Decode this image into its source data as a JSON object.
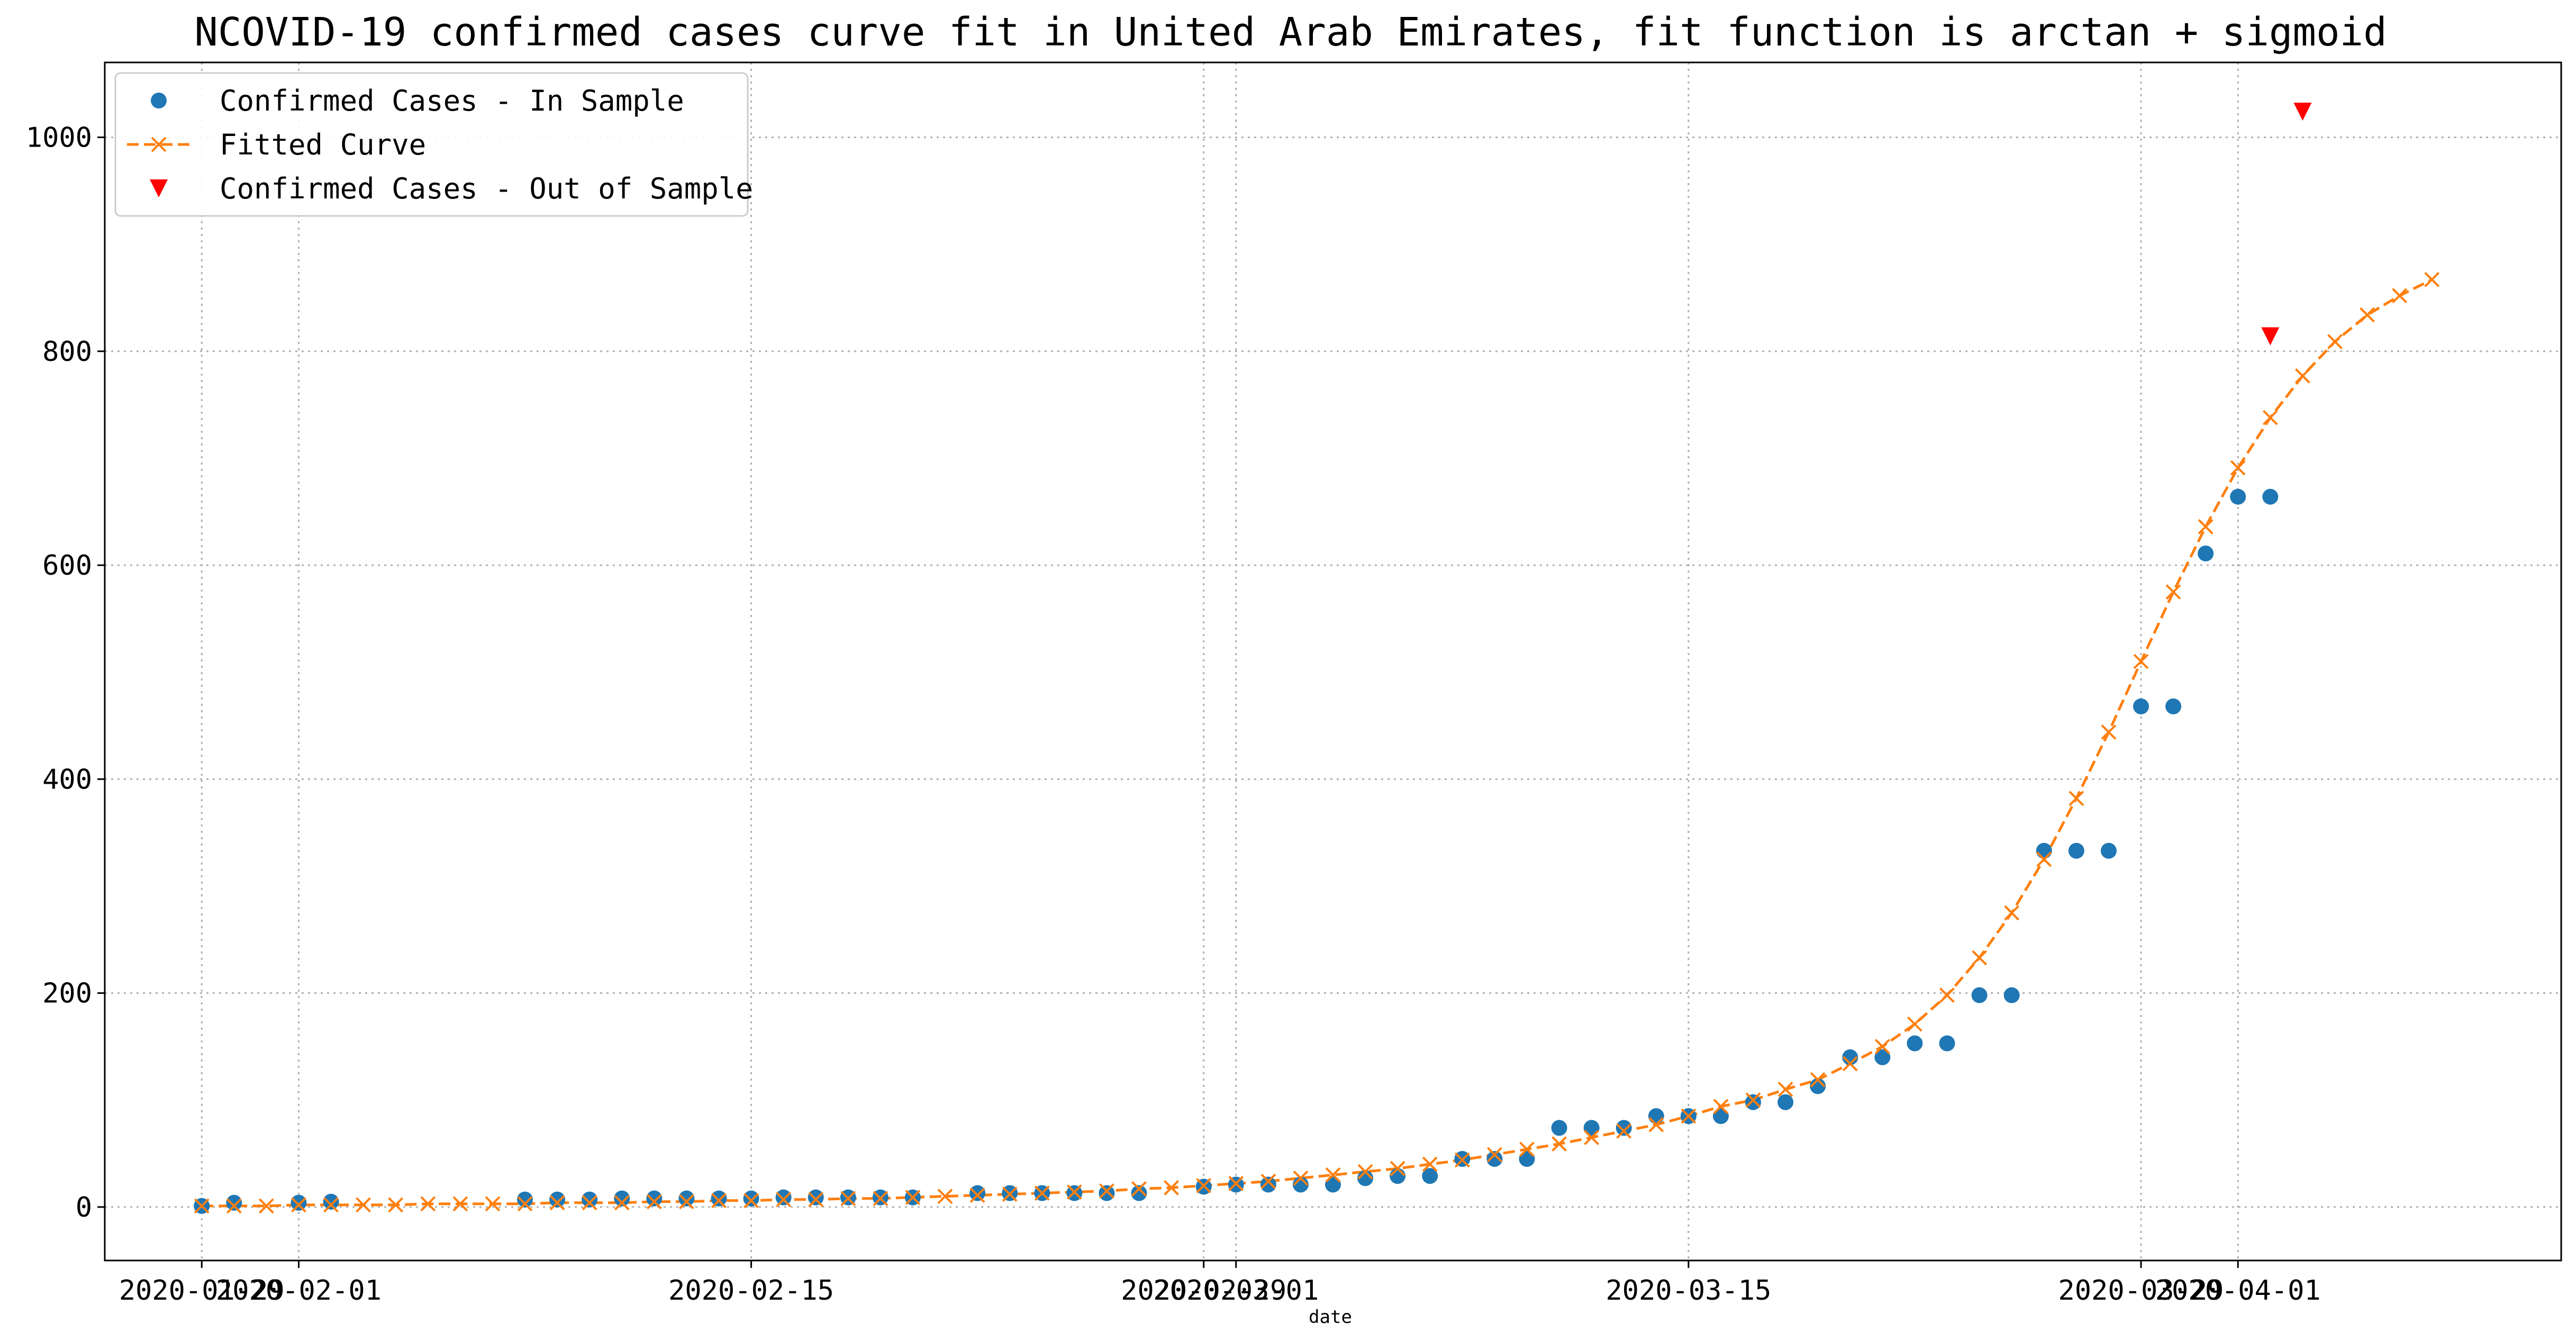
{
  "chart_data": {
    "type": "scatter",
    "title": "NCOVID-19 confirmed cases curve fit in United Arab Emirates, fit function is arctan + sigmoid",
    "xlabel": "date",
    "ylabel": "",
    "x_range": [
      "2020-01-26",
      "2020-04-11"
    ],
    "ylim": [
      -50,
      1070
    ],
    "y_ticks": [
      0,
      200,
      400,
      600,
      800,
      1000
    ],
    "x_ticks": [
      "2020-01-29",
      "2020-02-01",
      "2020-02-15",
      "2020-02-29",
      "2020-03-01",
      "2020-03-15",
      "2020-03-29",
      "2020-04-01"
    ],
    "grid": true,
    "legend_position": "upper-left",
    "colors": {
      "in_sample": "#1f77b4",
      "fitted": "#ff7f0e",
      "out_of_sample": "#ff0000"
    },
    "series": [
      {
        "name": "Confirmed Cases - In Sample",
        "marker": "circle",
        "points": [
          [
            "2020-01-29",
            1
          ],
          [
            "2020-01-30",
            4
          ],
          [
            "2020-02-01",
            4
          ],
          [
            "2020-02-02",
            5
          ],
          [
            "2020-02-08",
            7
          ],
          [
            "2020-02-09",
            7
          ],
          [
            "2020-02-10",
            7
          ],
          [
            "2020-02-11",
            8
          ],
          [
            "2020-02-12",
            8
          ],
          [
            "2020-02-13",
            8
          ],
          [
            "2020-02-14",
            8
          ],
          [
            "2020-02-15",
            8
          ],
          [
            "2020-02-16",
            9
          ],
          [
            "2020-02-17",
            9
          ],
          [
            "2020-02-18",
            9
          ],
          [
            "2020-02-19",
            9
          ],
          [
            "2020-02-20",
            9
          ],
          [
            "2020-02-22",
            13
          ],
          [
            "2020-02-23",
            13
          ],
          [
            "2020-02-24",
            13
          ],
          [
            "2020-02-25",
            13
          ],
          [
            "2020-02-26",
            13
          ],
          [
            "2020-02-27",
            13
          ],
          [
            "2020-02-29",
            19
          ],
          [
            "2020-03-01",
            21
          ],
          [
            "2020-03-02",
            21
          ],
          [
            "2020-03-03",
            21
          ],
          [
            "2020-03-04",
            21
          ],
          [
            "2020-03-05",
            27
          ],
          [
            "2020-03-06",
            29
          ],
          [
            "2020-03-07",
            29
          ],
          [
            "2020-03-08",
            45
          ],
          [
            "2020-03-09",
            45
          ],
          [
            "2020-03-10",
            45
          ],
          [
            "2020-03-11",
            74
          ],
          [
            "2020-03-12",
            74
          ],
          [
            "2020-03-13",
            74
          ],
          [
            "2020-03-14",
            85
          ],
          [
            "2020-03-15",
            85
          ],
          [
            "2020-03-16",
            85
          ],
          [
            "2020-03-17",
            98
          ],
          [
            "2020-03-18",
            98
          ],
          [
            "2020-03-19",
            113
          ],
          [
            "2020-03-20",
            140
          ],
          [
            "2020-03-21",
            140
          ],
          [
            "2020-03-22",
            153
          ],
          [
            "2020-03-23",
            153
          ],
          [
            "2020-03-24",
            198
          ],
          [
            "2020-03-25",
            198
          ],
          [
            "2020-03-26",
            333
          ],
          [
            "2020-03-27",
            333
          ],
          [
            "2020-03-28",
            333
          ],
          [
            "2020-03-29",
            468
          ],
          [
            "2020-03-30",
            468
          ],
          [
            "2020-03-31",
            611
          ],
          [
            "2020-04-01",
            664
          ],
          [
            "2020-04-02",
            664
          ]
        ]
      },
      {
        "name": "Fitted Curve",
        "marker": "x",
        "line": "dashed",
        "points": [
          [
            "2020-01-29",
            1
          ],
          [
            "2020-01-30",
            1
          ],
          [
            "2020-01-31",
            1
          ],
          [
            "2020-02-01",
            2
          ],
          [
            "2020-02-02",
            2
          ],
          [
            "2020-02-03",
            2
          ],
          [
            "2020-02-04",
            2
          ],
          [
            "2020-02-05",
            3
          ],
          [
            "2020-02-06",
            3
          ],
          [
            "2020-02-07",
            3
          ],
          [
            "2020-02-08",
            3
          ],
          [
            "2020-02-09",
            4
          ],
          [
            "2020-02-10",
            4
          ],
          [
            "2020-02-11",
            4
          ],
          [
            "2020-02-12",
            5
          ],
          [
            "2020-02-13",
            5
          ],
          [
            "2020-02-14",
            6
          ],
          [
            "2020-02-15",
            6
          ],
          [
            "2020-02-16",
            7
          ],
          [
            "2020-02-17",
            7
          ],
          [
            "2020-02-18",
            8
          ],
          [
            "2020-02-19",
            8
          ],
          [
            "2020-02-20",
            9
          ],
          [
            "2020-02-21",
            10
          ],
          [
            "2020-02-22",
            11
          ],
          [
            "2020-02-23",
            12
          ],
          [
            "2020-02-24",
            13
          ],
          [
            "2020-02-25",
            14
          ],
          [
            "2020-02-26",
            15
          ],
          [
            "2020-02-27",
            17
          ],
          [
            "2020-02-28",
            18
          ],
          [
            "2020-02-29",
            20
          ],
          [
            "2020-03-01",
            22
          ],
          [
            "2020-03-02",
            24
          ],
          [
            "2020-03-03",
            27
          ],
          [
            "2020-03-04",
            30
          ],
          [
            "2020-03-05",
            33
          ],
          [
            "2020-03-06",
            36
          ],
          [
            "2020-03-07",
            40
          ],
          [
            "2020-03-08",
            44
          ],
          [
            "2020-03-09",
            49
          ],
          [
            "2020-03-10",
            54
          ],
          [
            "2020-03-11",
            59
          ],
          [
            "2020-03-12",
            65
          ],
          [
            "2020-03-13",
            71
          ],
          [
            "2020-03-14",
            77
          ],
          [
            "2020-03-15",
            85
          ],
          [
            "2020-03-16",
            94
          ],
          [
            "2020-03-17",
            100
          ],
          [
            "2020-03-18",
            110
          ],
          [
            "2020-03-19",
            119
          ],
          [
            "2020-03-20",
            134
          ],
          [
            "2020-03-21",
            150
          ],
          [
            "2020-03-22",
            171
          ],
          [
            "2020-03-23",
            198
          ],
          [
            "2020-03-24",
            233
          ],
          [
            "2020-03-25",
            275
          ],
          [
            "2020-03-26",
            325
          ],
          [
            "2020-03-27",
            382
          ],
          [
            "2020-03-28",
            444
          ],
          [
            "2020-03-29",
            510
          ],
          [
            "2020-03-30",
            575
          ],
          [
            "2020-03-31",
            636
          ],
          [
            "2020-04-01",
            691
          ],
          [
            "2020-04-02",
            738
          ],
          [
            "2020-04-03",
            777
          ],
          [
            "2020-04-04",
            809
          ],
          [
            "2020-04-05",
            834
          ],
          [
            "2020-04-06",
            852
          ],
          [
            "2020-04-07",
            867
          ]
        ]
      },
      {
        "name": "Confirmed Cases - Out of Sample",
        "marker": "triangle-down",
        "points": [
          [
            "2020-04-02",
            814
          ],
          [
            "2020-04-03",
            1024
          ]
        ]
      }
    ]
  }
}
